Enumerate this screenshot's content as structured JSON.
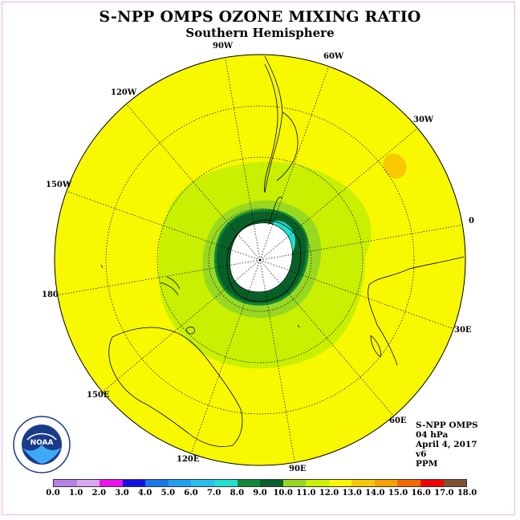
{
  "title": "S-NPP OMPS OZONE MIXING RATIO",
  "subtitle": "Southern Hemisphere",
  "longitude_labels": [
    "90W",
    "60W",
    "30W",
    "120W",
    "150W",
    "0",
    "180",
    "30E",
    "150E",
    "60E",
    "120E",
    "90E"
  ],
  "info": {
    "instrument": "S-NPP OMPS",
    "level": "04 hPa",
    "date": "April 4, 2017",
    "version": "v6",
    "units": "PPM"
  },
  "colorbar": {
    "ticks": [
      "0.0",
      "1.0",
      "2.0",
      "3.0",
      "4.0",
      "5.0",
      "6.0",
      "7.0",
      "8.0",
      "9.0",
      "10.0",
      "11.0",
      "12.0",
      "13.0",
      "14.0",
      "15.0",
      "16.0",
      "17.0",
      "18.0"
    ],
    "colors": [
      "#b87fe8",
      "#d8a8f0",
      "#ee10ee",
      "#1010e8",
      "#1878e8",
      "#20a0f0",
      "#28c0f0",
      "#20e0d0",
      "#108838",
      "#086028",
      "#98d820",
      "#c8f000",
      "#f8f800",
      "#f8c800",
      "#f8a000",
      "#f86800",
      "#f00000",
      "#805030"
    ]
  },
  "colors": {
    "background_field": "#f8f800",
    "mid_ring": "#c8f000",
    "inner_ring": "#98d820",
    "dark_ring": "#086028",
    "ring_edge": "#108838",
    "cyan_patch": "#20e0d0",
    "local_max": "#f8c800"
  },
  "logo": {
    "text": "NOAA"
  }
}
